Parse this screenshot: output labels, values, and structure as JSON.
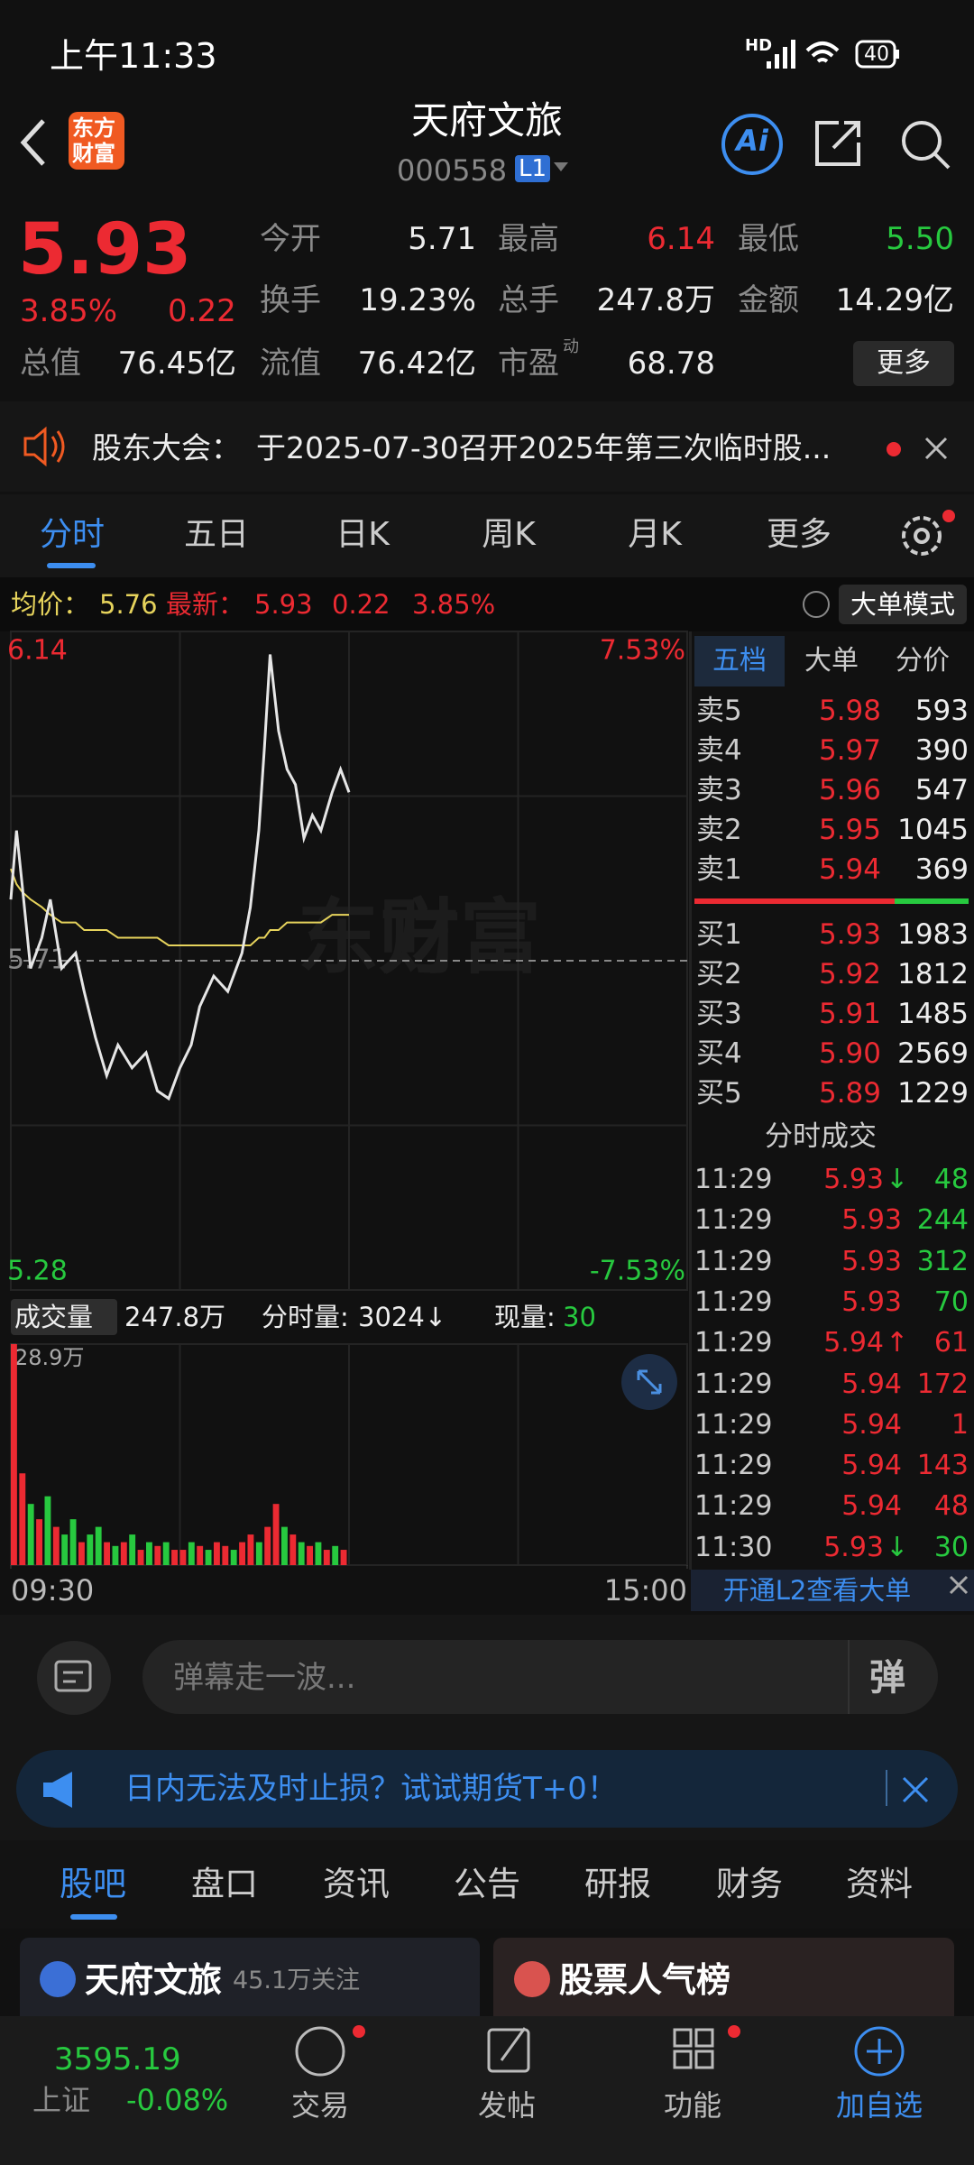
{
  "status_bar": {
    "time": "上午11:33",
    "network": "HD",
    "battery": "40"
  },
  "header": {
    "logo_line1": "东方",
    "logo_line2": "财富",
    "title": "天府文旅",
    "code": "000558",
    "level": "L1",
    "ai": "Ai"
  },
  "quote": {
    "price": "5.93",
    "change_pct": "3.85%",
    "change": "0.22",
    "stats": [
      {
        "label": "今开",
        "value": "5.71"
      },
      {
        "label": "最高",
        "value": "6.14"
      },
      {
        "label": "最低",
        "value": "5.50"
      },
      {
        "label": "换手",
        "value": "19.23%"
      },
      {
        "label": "总手",
        "value": "247.8万"
      },
      {
        "label": "金额",
        "value": "14.29亿"
      },
      {
        "label": "总值",
        "value": "76.45亿"
      },
      {
        "label": "流值",
        "value": "76.42亿"
      },
      {
        "label": "市盈",
        "sup": "动",
        "value": "68.78"
      }
    ],
    "more": "更多"
  },
  "notice": {
    "label": "股东大会：",
    "text": "于2025-07-30召开2025年第三次临时股..."
  },
  "chart_tabs": [
    "分时",
    "五日",
    "日K",
    "周K",
    "月K",
    "更多"
  ],
  "info_line": {
    "avg_label": "均价：",
    "avg": "5.76",
    "latest_label": "最新：",
    "latest": "5.93",
    "change": "0.22",
    "change_pct": "3.85%",
    "mode": "大单模式"
  },
  "volume_header": {
    "label": "成交量",
    "total": "247.8万",
    "minute_label": "分时量:",
    "minute_value": "3024↓",
    "current_label": "现量:",
    "current_value": "30"
  },
  "order_book": {
    "tabs": [
      "五档",
      "大单",
      "分价"
    ],
    "asks": [
      [
        "卖5",
        "5.98",
        "593"
      ],
      [
        "卖4",
        "5.97",
        "390"
      ],
      [
        "卖3",
        "5.96",
        "547"
      ],
      [
        "卖2",
        "5.95",
        "1045"
      ],
      [
        "卖1",
        "5.94",
        "369"
      ]
    ],
    "bids": [
      [
        "买1",
        "5.93",
        "1983"
      ],
      [
        "买2",
        "5.92",
        "1812"
      ],
      [
        "买3",
        "5.91",
        "1485"
      ],
      [
        "买4",
        "5.90",
        "2569"
      ],
      [
        "买5",
        "5.89",
        "1229"
      ]
    ]
  },
  "trades": {
    "title": "分时成交",
    "rows": [
      {
        "time": "11:29",
        "price": "5.93",
        "arrow": "↓",
        "volume": "48",
        "color": "green"
      },
      {
        "time": "11:29",
        "price": "5.93",
        "volume": "244",
        "color": "green"
      },
      {
        "time": "11:29",
        "price": "5.93",
        "volume": "312",
        "color": "green"
      },
      {
        "time": "11:29",
        "price": "5.93",
        "volume": "70",
        "color": "green"
      },
      {
        "time": "11:29",
        "price": "5.94",
        "arrow": "↑",
        "volume": "61",
        "color": "red"
      },
      {
        "time": "11:29",
        "price": "5.94",
        "volume": "172",
        "color": "red"
      },
      {
        "time": "11:29",
        "price": "5.94",
        "volume": "1",
        "color": "red"
      },
      {
        "time": "11:29",
        "price": "5.94",
        "volume": "143",
        "color": "red"
      },
      {
        "time": "11:29",
        "price": "5.94",
        "volume": "48",
        "color": "red"
      },
      {
        "time": "11:30",
        "price": "5.93",
        "arrow": "↓",
        "volume": "30",
        "color": "green"
      }
    ],
    "l2": "开通L2查看大单"
  },
  "danmaku": {
    "placeholder": "弹幕走一波...",
    "button": "弹"
  },
  "ad": {
    "text": "日内无法及时止损？试试期货T+0！"
  },
  "section_tabs": [
    "股吧",
    "盘口",
    "资讯",
    "公告",
    "研报",
    "财务",
    "资料"
  ],
  "cards": [
    {
      "name": "天府文旅",
      "followers": "45.1万关注"
    },
    {
      "name": "股票人气榜"
    }
  ],
  "bottom_nav": {
    "index_value": "3595.19",
    "index_name": "上证",
    "index_change": "-0.08%",
    "items": [
      "交易",
      "发帖",
      "功能",
      "加自选"
    ]
  },
  "chart_data": [
    {
      "type": "line",
      "x": [
        0,
        2,
        4,
        7,
        11,
        14,
        18,
        23,
        26,
        30,
        34,
        38,
        43,
        48,
        52,
        56,
        60,
        64,
        67,
        72,
        77,
        82,
        85,
        88,
        90,
        92,
        95,
        98,
        101,
        104,
        107,
        110,
        114,
        117,
        120
      ],
      "series": [
        {
          "color": "#e6e6e6",
          "values": [
            5.79,
            5.88,
            5.81,
            5.7,
            5.74,
            5.79,
            5.7,
            5.72,
            5.67,
            5.61,
            5.56,
            5.6,
            5.57,
            5.59,
            5.54,
            5.53,
            5.57,
            5.6,
            5.65,
            5.69,
            5.67,
            5.72,
            5.78,
            5.88,
            5.99,
            6.11,
            6.01,
            5.96,
            5.94,
            5.87,
            5.9,
            5.88,
            5.93,
            5.96,
            5.93
          ]
        },
        {
          "color": "#e6d35c",
          "values": [
            5.83,
            5.81,
            5.8,
            5.79,
            5.78,
            5.77,
            5.76,
            5.76,
            5.75,
            5.75,
            5.75,
            5.74,
            5.74,
            5.74,
            5.74,
            5.73,
            5.73,
            5.73,
            5.73,
            5.73,
            5.73,
            5.73,
            5.73,
            5.74,
            5.74,
            5.75,
            5.75,
            5.76,
            5.76,
            5.76,
            5.76,
            5.76,
            5.77,
            5.77,
            5.77
          ]
        }
      ],
      "xlim": [
        0,
        240
      ],
      "ylim": [
        5.28,
        6.14
      ],
      "yticks": [
        6.14,
        5.71,
        5.28
      ],
      "y2lim": [
        -7.53,
        7.53
      ],
      "y2ticks": [
        {
          "value": 7.53,
          "label": "7.53%"
        },
        {
          "value": -7.53,
          "label": "-7.53%"
        }
      ]
    },
    {
      "type": "bar",
      "x": [
        0,
        3,
        6,
        9,
        12,
        15,
        18,
        21,
        24,
        27,
        30,
        33,
        36,
        39,
        42,
        45,
        48,
        51,
        54,
        57,
        60,
        63,
        66,
        69,
        72,
        75,
        78,
        81,
        84,
        87,
        90,
        93,
        96,
        99,
        102,
        105,
        108,
        111,
        114,
        117
      ],
      "values": [
        28.9,
        12,
        8,
        6,
        9,
        5,
        4,
        6,
        3,
        4,
        5,
        3,
        2.5,
        3,
        4,
        2,
        3,
        2.5,
        3,
        2,
        2,
        3,
        2.5,
        2,
        3,
        2.5,
        2,
        3,
        4,
        3,
        5,
        8,
        5,
        4,
        3,
        2.5,
        3,
        2,
        2.5,
        2
      ],
      "colors": [
        "#ec2a32",
        "#ec2a32",
        "#27c93f",
        "#ec2a32",
        "#27c93f",
        "#ec2a32",
        "#27c93f",
        "#27c93f",
        "#ec2a32",
        "#27c93f",
        "#27c93f",
        "#ec2a32",
        "#27c93f",
        "#ec2a32",
        "#27c93f",
        "#ec2a32",
        "#27c93f",
        "#ec2a32",
        "#27c93f",
        "#ec2a32",
        "#ec2a32",
        "#27c93f",
        "#ec2a32",
        "#27c93f",
        "#ec2a32",
        "#ec2a32",
        "#27c93f",
        "#ec2a32",
        "#ec2a32",
        "#27c93f",
        "#ec2a32",
        "#ec2a32",
        "#27c93f",
        "#ec2a32",
        "#27c93f",
        "#ec2a32",
        "#27c93f",
        "#ec2a32",
        "#27c93f",
        "#ec2a32"
      ],
      "xlim": [
        0,
        240
      ],
      "ylim": [
        0,
        28.9
      ],
      "yticks": [
        {
          "value": 28.9,
          "label": "28.9万"
        }
      ],
      "xticks": [
        {
          "value": 0,
          "label": "09:30"
        },
        {
          "value": 240,
          "label": "15:00"
        }
      ]
    }
  ]
}
